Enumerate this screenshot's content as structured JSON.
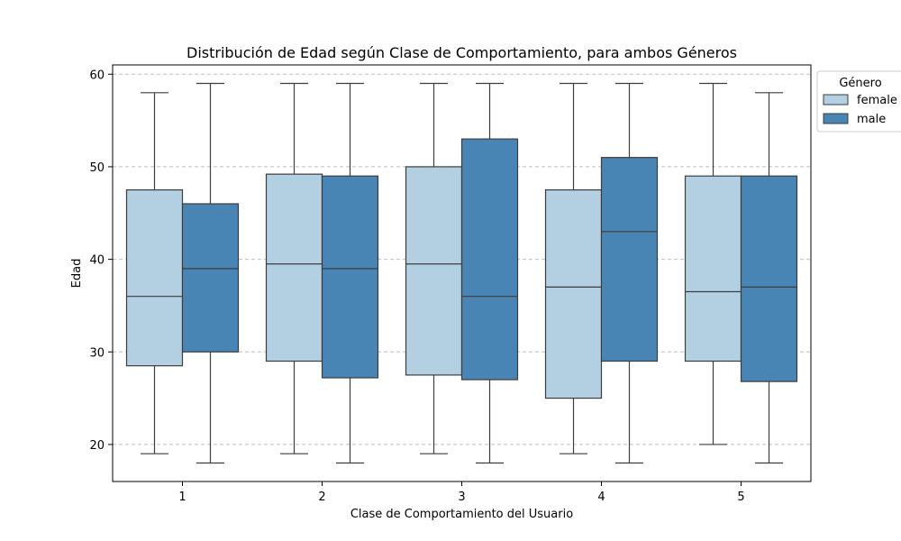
{
  "chart_data": {
    "type": "boxplot",
    "title": "Distribución de Edad según Clase de Comportamiento, para ambos Géneros",
    "xlabel": "Clase de Comportamiento del Usuario",
    "ylabel": "Edad",
    "categories": [
      "1",
      "2",
      "3",
      "4",
      "5"
    ],
    "ylim": [
      16,
      61
    ],
    "yticks": [
      20,
      30,
      40,
      50,
      60
    ],
    "grid": "horizontal dashed",
    "legend": {
      "title": "Género",
      "placement": "top-right, outside"
    },
    "series": [
      {
        "name": "female",
        "color": "#b3cfe2",
        "boxes": [
          {
            "min": 19,
            "q1": 28.5,
            "median": 36,
            "q3": 47.5,
            "max": 58
          },
          {
            "min": 19,
            "q1": 29,
            "median": 39.5,
            "q3": 49.2,
            "max": 59
          },
          {
            "min": 19,
            "q1": 27.5,
            "median": 39.5,
            "q3": 50,
            "max": 59
          },
          {
            "min": 19,
            "q1": 25,
            "median": 37,
            "q3": 47.5,
            "max": 59
          },
          {
            "min": 20,
            "q1": 29,
            "median": 36.5,
            "q3": 49,
            "max": 59
          }
        ]
      },
      {
        "name": "male",
        "color": "#4884b4",
        "boxes": [
          {
            "min": 18,
            "q1": 30,
            "median": 39,
            "q3": 46,
            "max": 59
          },
          {
            "min": 18,
            "q1": 27.2,
            "median": 39,
            "q3": 49,
            "max": 59
          },
          {
            "min": 18,
            "q1": 27,
            "median": 36,
            "q3": 53,
            "max": 59
          },
          {
            "min": 18,
            "q1": 29,
            "median": 43,
            "q3": 51,
            "max": 59
          },
          {
            "min": 18,
            "q1": 26.8,
            "median": 37,
            "q3": 49,
            "max": 58
          }
        ]
      }
    ]
  }
}
